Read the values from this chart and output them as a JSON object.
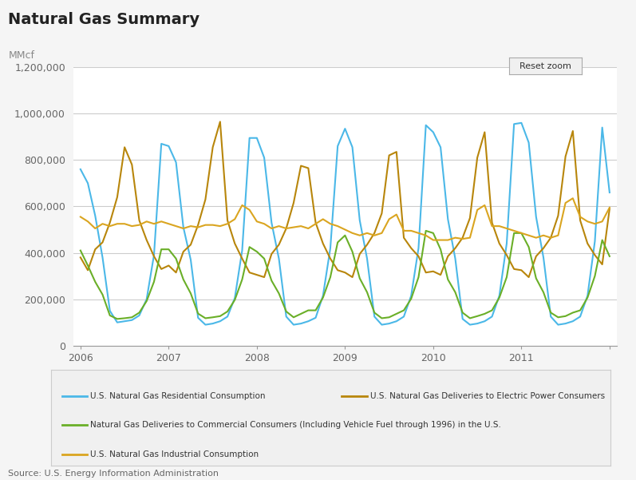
{
  "title": "Natural Gas Summary",
  "ylabel": "MMcf",
  "source": "Source: U.S. Energy Information Administration",
  "background_color": "#f5f5f5",
  "plot_bg_color": "#ffffff",
  "grid_color": "#cccccc",
  "title_fontsize": 14,
  "ylabel_fontsize": 9,
  "tick_fontsize": 9,
  "source_fontsize": 8,
  "ylim": [
    0,
    1200000
  ],
  "yticks": [
    0,
    200000,
    400000,
    600000,
    800000,
    1000000,
    1200000
  ],
  "ytick_labels": [
    "0",
    "200,000",
    "400,000",
    "600,000",
    "800,000",
    "1,000,000",
    "1,200,000"
  ],
  "colors": {
    "residential": "#4BB8E8",
    "electric": "#B8860B",
    "commercial": "#6AAF28",
    "industrial": "#DAA520"
  },
  "legend": [
    "U.S. Natural Gas Residential Consumption",
    "U.S. Natural Gas Deliveries to Electric Power Consumers",
    "Natural Gas Deliveries to Commercial Consumers (Including Vehicle Fuel through 1996) in the U.S.",
    "U.S. Natural Gas Industrial Consumption"
  ],
  "residential": [
    760000,
    700000,
    560000,
    380000,
    150000,
    100000,
    105000,
    110000,
    130000,
    200000,
    390000,
    870000,
    860000,
    790000,
    510000,
    370000,
    120000,
    90000,
    95000,
    105000,
    125000,
    205000,
    410000,
    895000,
    895000,
    810000,
    530000,
    375000,
    125000,
    90000,
    95000,
    105000,
    120000,
    215000,
    420000,
    860000,
    935000,
    855000,
    540000,
    375000,
    125000,
    90000,
    95000,
    105000,
    125000,
    215000,
    420000,
    950000,
    920000,
    855000,
    545000,
    375000,
    115000,
    90000,
    95000,
    105000,
    125000,
    215000,
    440000,
    955000,
    960000,
    875000,
    555000,
    380000,
    125000,
    90000,
    95000,
    105000,
    125000,
    215000,
    450000,
    940000,
    660000
  ],
  "electric": [
    380000,
    325000,
    415000,
    445000,
    530000,
    640000,
    855000,
    780000,
    540000,
    455000,
    385000,
    330000,
    345000,
    315000,
    405000,
    435000,
    520000,
    630000,
    855000,
    965000,
    540000,
    440000,
    375000,
    315000,
    305000,
    295000,
    395000,
    435000,
    505000,
    615000,
    775000,
    765000,
    530000,
    440000,
    375000,
    325000,
    315000,
    295000,
    395000,
    435000,
    485000,
    570000,
    820000,
    835000,
    465000,
    420000,
    385000,
    315000,
    320000,
    305000,
    385000,
    420000,
    465000,
    550000,
    810000,
    920000,
    530000,
    440000,
    390000,
    330000,
    325000,
    295000,
    385000,
    420000,
    465000,
    560000,
    815000,
    925000,
    540000,
    440000,
    390000,
    350000,
    590000
  ],
  "commercial": [
    410000,
    345000,
    275000,
    220000,
    130000,
    115000,
    118000,
    122000,
    142000,
    192000,
    275000,
    415000,
    415000,
    375000,
    285000,
    225000,
    138000,
    118000,
    122000,
    127000,
    147000,
    197000,
    285000,
    425000,
    405000,
    375000,
    280000,
    225000,
    147000,
    122000,
    137000,
    152000,
    152000,
    207000,
    295000,
    445000,
    475000,
    405000,
    290000,
    230000,
    142000,
    118000,
    122000,
    137000,
    152000,
    202000,
    295000,
    495000,
    485000,
    415000,
    285000,
    230000,
    142000,
    118000,
    127000,
    137000,
    152000,
    207000,
    295000,
    485000,
    485000,
    425000,
    290000,
    230000,
    142000,
    122000,
    127000,
    142000,
    152000,
    207000,
    300000,
    455000,
    385000
  ],
  "industrial": [
    555000,
    535000,
    505000,
    525000,
    515000,
    525000,
    525000,
    515000,
    520000,
    535000,
    525000,
    535000,
    525000,
    515000,
    505000,
    515000,
    510000,
    520000,
    520000,
    515000,
    525000,
    545000,
    605000,
    585000,
    535000,
    525000,
    505000,
    515000,
    505000,
    510000,
    515000,
    505000,
    525000,
    545000,
    525000,
    515000,
    500000,
    485000,
    475000,
    485000,
    475000,
    485000,
    545000,
    565000,
    495000,
    495000,
    485000,
    475000,
    455000,
    455000,
    455000,
    465000,
    460000,
    465000,
    585000,
    605000,
    515000,
    515000,
    505000,
    495000,
    485000,
    475000,
    465000,
    475000,
    465000,
    475000,
    615000,
    635000,
    555000,
    535000,
    525000,
    535000,
    595000
  ],
  "xtick_positions": [
    0,
    12,
    24,
    36,
    48,
    60,
    72
  ],
  "xtick_labels": [
    "2006",
    "2007",
    "2008",
    "2009",
    "2010",
    "2011",
    ""
  ]
}
